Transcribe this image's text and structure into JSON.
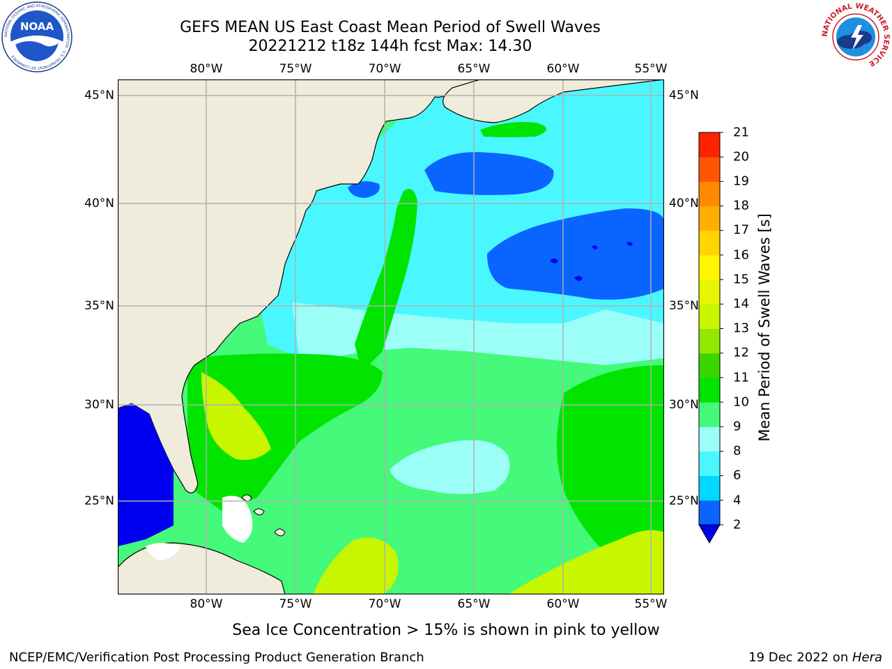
{
  "title": {
    "line1": "GEFS MEAN US East Coast Mean Period of Swell Waves",
    "line2": "20221212 t18z 144h fcst   Max: 14.30"
  },
  "map": {
    "lon_labels": [
      "80°W",
      "75°W",
      "70°W",
      "65°W",
      "60°W",
      "55°W"
    ],
    "lat_labels": [
      "45°N",
      "40°N",
      "35°N",
      "30°N",
      "25°N"
    ],
    "lon_values": [
      -80,
      -75,
      -70,
      -65,
      -60,
      -55
    ],
    "lat_values": [
      45,
      40,
      35,
      30,
      25
    ],
    "extent": {
      "lon_min": -84.9,
      "lon_max": -54.4,
      "lat_min": 20.4,
      "lat_max": 45.8
    },
    "land_color": "#efecdc",
    "grid_color": "#b0b0b0"
  },
  "colorbar": {
    "label": "Mean Period of Swell Waves [s]",
    "ticks": [
      "21",
      "20",
      "19",
      "18",
      "17",
      "16",
      "15",
      "14",
      "13",
      "12",
      "11",
      "10",
      "9",
      "8",
      "6",
      "4",
      "2"
    ],
    "levels": [
      2,
      4,
      6,
      8,
      9,
      10,
      11,
      12,
      13,
      14,
      15,
      16,
      17,
      18,
      19,
      20,
      21
    ],
    "colors": [
      "#0a64ff",
      "#00d8ff",
      "#4af7ff",
      "#9bfff8",
      "#45f97a",
      "#00e400",
      "#39d600",
      "#94e800",
      "#c8f500",
      "#e8f500",
      "#fff500",
      "#ffd400",
      "#ffae00",
      "#ff8a00",
      "#ff5500",
      "#ff2200"
    ],
    "under_color": "#0000f0"
  },
  "note": "Sea Ice Concentration > 15% is shown in pink to yellow",
  "footer": {
    "left": "NCEP/EMC/Verification Post Processing Product Generation Branch",
    "right_prefix": "19 Dec 2022 on ",
    "right_machine": "Hera"
  },
  "logos": {
    "noaa_text": "NOAA",
    "noaa_ring": "NATIONAL OCEANIC AND ATMOSPHERIC ADMINISTRATION · U.S. DEPARTMENT OF COMMERCE",
    "nws_ring": "NATIONAL WEATHER SERVICE"
  }
}
